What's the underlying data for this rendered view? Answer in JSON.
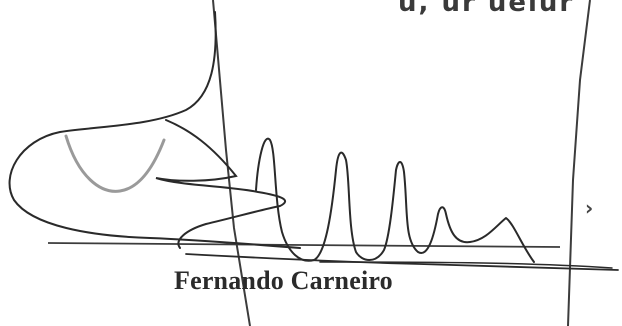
{
  "document": {
    "top_fragment": "u,   ur uelur",
    "signer_name": "Fernando Carneiro",
    "margin_mark": "›"
  },
  "colors": {
    "paper": "#ffffff",
    "ink": "#2a2a2a",
    "faded_stroke": "#9a9a9a",
    "rule_line": "#3c3c3c"
  },
  "graphics": {
    "signature": "handwritten-signature",
    "frame_lines": "page-frame-lines"
  }
}
